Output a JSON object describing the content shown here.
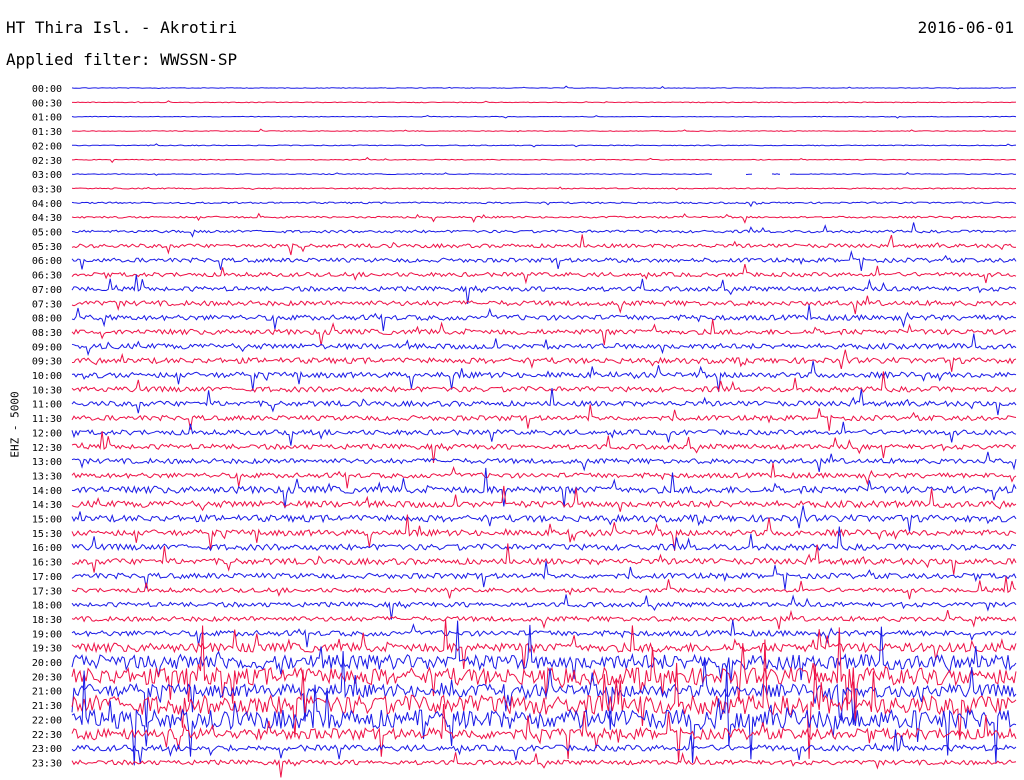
{
  "header": {
    "station": "HT Thira Isl. - Akrotiri",
    "date": "2016-06-01",
    "filter": "Applied filter: WWSSN-SP"
  },
  "chart_data": {
    "type": "line",
    "title": "HT Thira Isl. - Akrotiri",
    "ylabel": "EHZ - 5000",
    "rows": [
      "00:00",
      "00:30",
      "01:00",
      "01:30",
      "02:00",
      "02:30",
      "03:00",
      "03:30",
      "04:00",
      "04:30",
      "05:00",
      "05:30",
      "06:00",
      "06:30",
      "07:00",
      "07:30",
      "08:00",
      "08:30",
      "09:00",
      "09:30",
      "10:00",
      "10:30",
      "11:00",
      "11:30",
      "12:00",
      "12:30",
      "13:00",
      "13:30",
      "14:00",
      "14:30",
      "15:00",
      "15:30",
      "16:00",
      "16:30",
      "17:00",
      "17:30",
      "18:00",
      "18:30",
      "19:00",
      "19:30",
      "20:00",
      "20:30",
      "21:00",
      "21:30",
      "22:00",
      "22:30",
      "23:00",
      "23:30"
    ],
    "noise_level": [
      0.3,
      0.35,
      0.3,
      0.35,
      0.4,
      0.4,
      0.4,
      0.6,
      0.8,
      0.9,
      1.3,
      1.9,
      2.1,
      2.1,
      2.3,
      2.5,
      2.6,
      2.6,
      2.7,
      2.8,
      2.8,
      2.6,
      2.6,
      2.5,
      2.5,
      2.5,
      2.5,
      2.5,
      3.5,
      3.3,
      3.3,
      3.0,
      3.0,
      3.0,
      2.7,
      2.2,
      2.3,
      2.4,
      2.7,
      4.5,
      7.5,
      8.5,
      6.5,
      9.5,
      9.5,
      5.5,
      3.0,
      2.3
    ],
    "colors": [
      "#1a1ae6",
      "#ee1146"
    ],
    "time_axis": "30 min per line",
    "gap_row": "03:00"
  }
}
